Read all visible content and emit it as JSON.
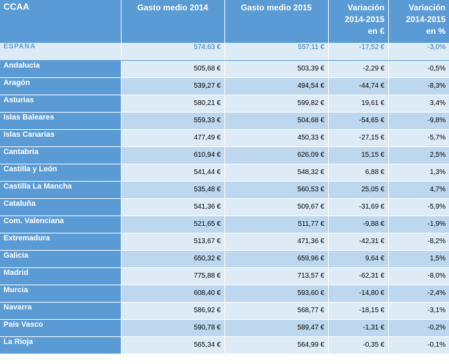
{
  "table": {
    "headers": [
      [
        "CCAA"
      ],
      [
        "Gasto medio 2014"
      ],
      [
        "Gasto medio 2015"
      ],
      [
        "Variación",
        "2014-2015",
        "en €"
      ],
      [
        "Variación",
        "2014-2015",
        "en %"
      ]
    ],
    "total_row": [
      "ESPAÑA",
      "574,63 €",
      "557,11 €",
      "-17,52 €",
      "-3,0%"
    ],
    "rows": [
      [
        "Andalucía",
        "505,68 €",
        "503,39 €",
        "-2,29 €",
        "-0,5%"
      ],
      [
        "Aragón",
        "539,27 €",
        "494,54 €",
        "-44,74 €",
        "-8,3%"
      ],
      [
        "Asturias",
        "580,21 €",
        "599,82 €",
        "19,61 €",
        "3,4%"
      ],
      [
        "Islas Baleares",
        "559,33 €",
        "504,68 €",
        "-54,65 €",
        "-9,8%"
      ],
      [
        "Islas Canarias",
        "477,49 €",
        "450,33 €",
        "-27,15 €",
        "-5,7%"
      ],
      [
        "Cantabria",
        "610,94 €",
        "626,09 €",
        "15,15 €",
        "2,5%"
      ],
      [
        "Castilla y León",
        "541,44 €",
        "548,32 €",
        "6,88 €",
        "1,3%"
      ],
      [
        "Castilla La Mancha",
        "535,48 €",
        "560,53 €",
        "25,05 €",
        "4,7%"
      ],
      [
        "Cataluña",
        "541,36 €",
        "509,67 €",
        "-31,69 €",
        "-5,9%"
      ],
      [
        "Com. Valenciana",
        "521,65 €",
        "511,77 €",
        "-9,88 €",
        "-1,9%"
      ],
      [
        "Extremadura",
        "513,67 €",
        "471,36 €",
        "-42,31 €",
        "-8,2%"
      ],
      [
        "Galicia",
        "650,32 €",
        "659,96 €",
        "9,64 €",
        "1,5%"
      ],
      [
        "Madrid",
        "775,88 €",
        "713,57 €",
        "-62,31 €",
        "-8,0%"
      ],
      [
        "Murcia",
        "608,40 €",
        "593,60 €",
        "-14,80 €",
        "-2,4%"
      ],
      [
        "Navarra",
        "586,92 €",
        "568,77 €",
        "-18,15 €",
        "-3,1%"
      ],
      [
        "País Vasco",
        "590,78 €",
        "589,47 €",
        "-1,31 €",
        "-0,2%"
      ],
      [
        "La Rioja",
        "565,34 €",
        "564,99 €",
        "-0,35 €",
        "-0,1%"
      ]
    ]
  }
}
